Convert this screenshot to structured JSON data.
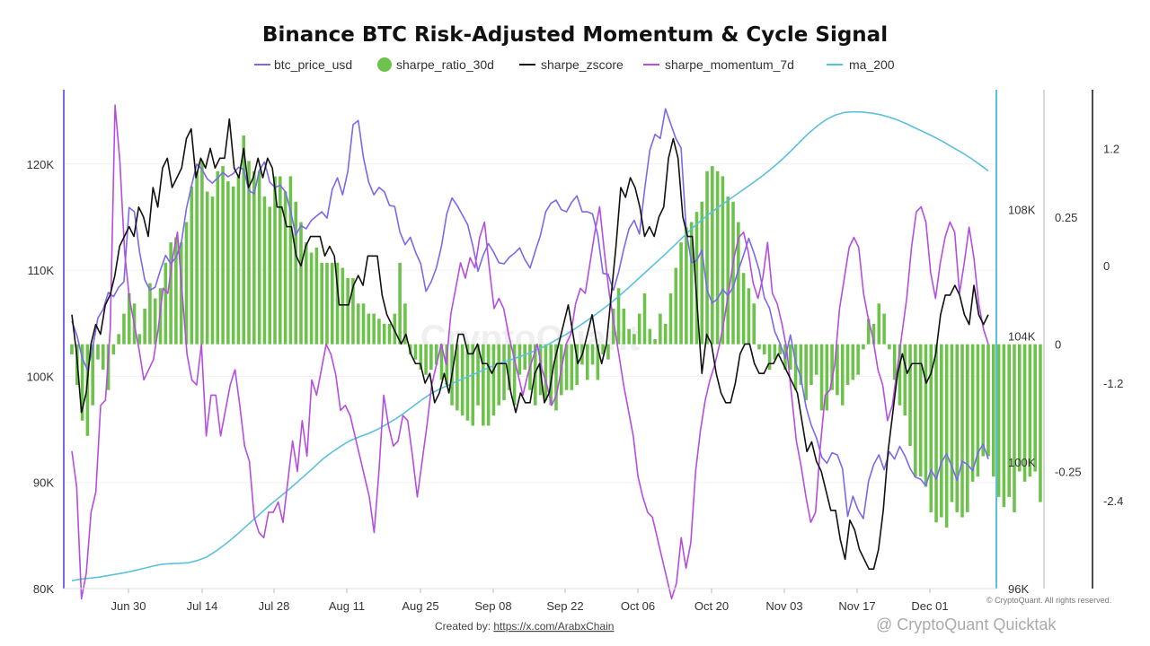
{
  "chart_data": {
    "type": "line",
    "title": "Binance BTC Risk-Adjusted Momentum & Cycle Signal",
    "legend": [
      {
        "key": "btc_price_usd",
        "label": "btc_price_usd",
        "color": "#7b68ee",
        "kind": "line"
      },
      {
        "key": "sharpe_ratio_30d",
        "label": "sharpe_ratio_30d",
        "color": "#6cc24a",
        "kind": "dot"
      },
      {
        "key": "sharpe_zscore",
        "label": "sharpe_zscore",
        "color": "#111111",
        "kind": "line"
      },
      {
        "key": "sharpe_momentum_7d",
        "label": "sharpe_momentum_7d",
        "color": "#b44ee0",
        "kind": "line"
      },
      {
        "key": "ma_200",
        "label": "ma_200",
        "color": "#5bc0de",
        "kind": "line"
      }
    ],
    "x_ticks": [
      "Jun 30",
      "Jul 14",
      "Jul 28",
      "Aug 11",
      "Aug 25",
      "Sep 08",
      "Sep 22",
      "Oct 06",
      "Oct 20",
      "Nov 03",
      "Nov 17",
      "Dec 01"
    ],
    "axes": {
      "price": {
        "ticks": [
          "80K",
          "90K",
          "100K",
          "110K",
          "120K"
        ],
        "range": [
          80000,
          127000
        ]
      },
      "ma": {
        "ticks": [
          "96K",
          "100K",
          "104K",
          "108K"
        ],
        "range": [
          96000,
          111800
        ]
      },
      "sharpe": {
        "ticks": [
          "-0.25",
          "0",
          "0.25"
        ],
        "range": [
          -0.48,
          0.5
        ]
      },
      "z": {
        "ticks": [
          "-2.4",
          "-1.2",
          "0",
          "1.2"
        ],
        "range": [
          -3.3,
          1.8
        ]
      }
    },
    "btc_price_usd": [
      105200,
      103800,
      101700,
      100600,
      102700,
      105500,
      106300,
      107900,
      107500,
      108400,
      108900,
      115900,
      115500,
      111700,
      109100,
      108100,
      108400,
      110000,
      111400,
      110600,
      111200,
      112500,
      115800,
      118000,
      120000,
      119500,
      118600,
      118200,
      118700,
      119200,
      118800,
      119100,
      119700,
      119500,
      117500,
      117200,
      119400,
      120200,
      118300,
      117800,
      118000,
      117400,
      115600,
      113300,
      114200,
      113900,
      114700,
      115100,
      115500,
      114900,
      117600,
      118700,
      117100,
      119300,
      123700,
      124100,
      120600,
      118300,
      117100,
      117800,
      117400,
      116100,
      116000,
      113600,
      112400,
      113100,
      111700,
      110600,
      108000,
      108900,
      110200,
      112300,
      115300,
      116800,
      116100,
      115200,
      114300,
      112300,
      109900,
      111400,
      112500,
      111700,
      110700,
      110600,
      111200,
      111600,
      112100,
      111000,
      110200,
      111800,
      113300,
      115500,
      116300,
      116600,
      115700,
      115500,
      116400,
      117000,
      115500,
      115500,
      115300,
      113300,
      109700,
      109600,
      108100,
      109800,
      112000,
      113900,
      114700,
      113400,
      117600,
      121300,
      122800,
      122400,
      125200,
      123800,
      122400,
      121500,
      113700,
      110700,
      110900,
      111900,
      108100,
      106900,
      107300,
      108200,
      107600,
      108400,
      110000,
      111400,
      113000,
      111600,
      110000,
      107400,
      106400,
      104200,
      103100,
      101700,
      103900,
      101300,
      99900,
      97100,
      95400,
      94200,
      92400,
      91800,
      92800,
      92600,
      91300,
      86800,
      88700,
      87400,
      86600,
      90100,
      91700,
      92600,
      91200,
      92900,
      92200,
      93400,
      92500,
      91300,
      90500,
      90300,
      89700,
      91200,
      90300,
      91900,
      92700,
      91500,
      90200,
      92000,
      91700,
      91100,
      92800,
      93600,
      92200
    ],
    "sharpe_ratio_30d": [
      -0.02,
      -0.08,
      -0.15,
      -0.18,
      -0.12,
      -0.03,
      -0.05,
      -0.09,
      -0.02,
      0.02,
      0.06,
      0.1,
      0.08,
      0.02,
      0.07,
      0.12,
      0.09,
      0.11,
      0.16,
      0.2,
      0.21,
      0.2,
      0.24,
      0.31,
      0.34,
      0.36,
      0.3,
      0.29,
      0.34,
      0.35,
      0.32,
      0.31,
      0.33,
      0.41,
      0.36,
      0.34,
      0.34,
      0.29,
      0.27,
      0.33,
      0.33,
      0.3,
      0.33,
      0.28,
      0.24,
      0.2,
      0.18,
      0.19,
      0.16,
      0.16,
      0.16,
      0.16,
      0.15,
      0.13,
      0.13,
      0.08,
      0.08,
      0.06,
      0.06,
      0.05,
      0.04,
      0.04,
      0.06,
      0.16,
      0.08,
      -0.02,
      -0.03,
      -0.05,
      -0.06,
      -0.05,
      -0.04,
      -0.07,
      -0.08,
      -0.12,
      -0.13,
      -0.14,
      -0.15,
      -0.16,
      -0.12,
      -0.16,
      -0.16,
      -0.14,
      -0.12,
      -0.11,
      -0.09,
      -0.12,
      -0.06,
      -0.05,
      -0.09,
      -0.12,
      -0.1,
      -0.11,
      -0.12,
      -0.13,
      -0.1,
      -0.09,
      -0.09,
      -0.08,
      -0.04,
      -0.07,
      -0.04,
      -0.07,
      -0.02,
      -0.03,
      0.07,
      0.11,
      0.07,
      0.03,
      0.02,
      0.06,
      0.1,
      0.03,
      0.01,
      0.06,
      0.04,
      0.1,
      0.15,
      0.2,
      0.23,
      0.24,
      0.26,
      0.28,
      0.34,
      0.35,
      0.34,
      0.33,
      0.29,
      0.28,
      0.24,
      0.14,
      0.11,
      0.08,
      -0.01,
      -0.02,
      -0.05,
      -0.03,
      -0.02,
      -0.05,
      -0.05,
      -0.09,
      -0.08,
      -0.11,
      -0.08,
      -0.06,
      -0.13,
      -0.13,
      -0.09,
      -0.1,
      -0.12,
      -0.08,
      -0.07,
      -0.06,
      -0.01,
      0.05,
      0.04,
      0.08,
      0.06,
      -0.01,
      -0.07,
      -0.12,
      -0.14,
      -0.2,
      -0.26,
      -0.26,
      -0.28,
      -0.33,
      -0.35,
      -0.34,
      -0.36,
      -0.31,
      -0.33,
      -0.34,
      -0.33,
      -0.27,
      -0.26,
      -0.22,
      -0.22,
      -0.26,
      -0.3,
      -0.32,
      -0.3,
      -0.33,
      -0.25,
      -0.27,
      -0.26,
      -0.25,
      -0.31
    ],
    "sharpe_zscore": [
      -0.5,
      -0.9,
      -1.5,
      -1.3,
      -0.8,
      -0.6,
      -0.7,
      -0.4,
      -0.3,
      -0.1,
      0.2,
      0.3,
      0.4,
      0.3,
      0.6,
      0.5,
      0.3,
      0.8,
      0.6,
      1.0,
      1.1,
      0.8,
      0.9,
      1.0,
      1.3,
      1.4,
      0.9,
      1.1,
      1.0,
      1.2,
      1.0,
      1.1,
      1.1,
      1.5,
      1.0,
      0.9,
      1.2,
      0.8,
      0.9,
      1.1,
      0.9,
      1.1,
      1.0,
      0.6,
      0.6,
      0.4,
      0.4,
      0.1,
      0.0,
      0.2,
      0.3,
      0.3,
      0.3,
      0.1,
      0.2,
      0.1,
      -0.4,
      -0.4,
      -0.4,
      -0.2,
      -0.1,
      -0.2,
      0.1,
      0.1,
      0.1,
      -0.3,
      -0.5,
      -0.6,
      -0.7,
      -0.8,
      -0.7,
      -0.9,
      -1.0,
      -1.0,
      -1.2,
      -1.1,
      -1.4,
      -1.3,
      -1.1,
      -1.3,
      -1.0,
      -0.7,
      -0.7,
      -0.9,
      -0.9,
      -0.8,
      -1.0,
      -1.0,
      -1.1,
      -1.0,
      -1.0,
      -1.0,
      -1.3,
      -1.5,
      -1.3,
      -1.4,
      -1.4,
      -1.1,
      -1.0,
      -1.4,
      -1.3,
      -1.0,
      -0.8,
      -0.6,
      -0.4,
      -0.7,
      -1.0,
      -0.9,
      -0.7,
      -0.5,
      -0.8,
      -1.0,
      -0.8,
      -0.3,
      0.2,
      0.8,
      0.7,
      0.9,
      0.8,
      0.6,
      0.3,
      0.4,
      0.3,
      0.5,
      0.6,
      1.1,
      1.3,
      1.1,
      0.5,
      0.3,
      0.3,
      -0.4,
      -1.1,
      -0.7,
      -0.8,
      -1.1,
      -1.3,
      -1.4,
      -1.4,
      -1.2,
      -0.9,
      -0.8,
      -0.8,
      -1.0,
      -1.1,
      -1.1,
      -1.0,
      -1.0,
      -0.9,
      -1.0,
      -1.1,
      -1.2,
      -1.3,
      -1.6,
      -1.9,
      -1.8,
      -2.0,
      -2.1,
      -2.3,
      -2.5,
      -2.5,
      -2.8,
      -3.0,
      -2.6,
      -2.7,
      -2.9,
      -3.0,
      -3.1,
      -3.1,
      -2.9,
      -2.5,
      -1.9,
      -1.5,
      -1.1,
      -0.9,
      -1.1,
      -1.0,
      -1.0,
      -1.0,
      -1.2,
      -1.1,
      -0.9,
      -0.5,
      -0.3,
      -0.3,
      -0.2,
      -0.3,
      -0.5,
      -0.6,
      -0.2,
      -0.5,
      -0.6,
      -0.5
    ],
    "sharpe_momentum_7d": [
      -0.21,
      -0.28,
      -0.5,
      -0.45,
      -0.33,
      -0.29,
      -0.12,
      -0.11,
      0.03,
      0.47,
      0.36,
      0.18,
      0.09,
      0.04,
      -0.01,
      -0.07,
      -0.05,
      -0.03,
      0.03,
      0.11,
      0.1,
      0.17,
      0.22,
      0.1,
      -0.02,
      -0.07,
      -0.08,
      0.0,
      -0.18,
      -0.1,
      -0.1,
      -0.18,
      -0.13,
      -0.08,
      -0.05,
      -0.12,
      -0.2,
      -0.23,
      -0.34,
      -0.37,
      -0.38,
      -0.33,
      -0.33,
      -0.31,
      -0.35,
      -0.27,
      -0.19,
      -0.25,
      -0.15,
      -0.22,
      -0.07,
      -0.1,
      -0.05,
      0.0,
      -0.02,
      -0.06,
      -0.13,
      -0.12,
      -0.14,
      -0.18,
      -0.22,
      -0.26,
      -0.3,
      -0.37,
      -0.25,
      -0.1,
      -0.16,
      -0.2,
      -0.19,
      -0.14,
      -0.15,
      -0.22,
      -0.3,
      -0.23,
      -0.16,
      -0.08,
      -0.04,
      0.0,
      -0.04,
      0.06,
      0.11,
      0.16,
      0.13,
      0.17,
      0.15,
      0.21,
      0.24,
      0.15,
      0.07,
      0.09,
      0.07,
      0.02,
      -0.02,
      -0.06,
      -0.1,
      -0.06,
      -0.03,
      0.0,
      -0.05,
      -0.08,
      -0.12,
      -0.1,
      -0.05,
      0.0,
      0.02,
      0.08,
      0.11,
      0.1,
      0.16,
      0.22,
      0.27,
      0.18,
      0.1,
      0.04,
      -0.02,
      -0.08,
      -0.13,
      -0.18,
      -0.26,
      -0.3,
      -0.33,
      -0.34,
      -0.38,
      -0.42,
      -0.46,
      -0.5,
      -0.47,
      -0.38,
      -0.44,
      -0.39,
      -0.25,
      -0.17,
      -0.11,
      -0.07,
      -0.04,
      0.0,
      0.05,
      0.11,
      0.17,
      0.21,
      0.22,
      0.18,
      0.12,
      0.09,
      0.13,
      0.2,
      0.1,
      0.08,
      0.04,
      -0.01,
      -0.1,
      -0.19,
      -0.24,
      -0.3,
      -0.35,
      -0.33,
      -0.2,
      -0.1,
      -0.09,
      -0.04,
      0.07,
      0.13,
      0.19,
      0.21,
      0.19,
      0.1,
      0.05,
      0.01,
      -0.05,
      -0.08,
      -0.15,
      -0.12,
      -0.05,
      0.02,
      0.09,
      0.19,
      0.26,
      0.27,
      0.24,
      0.14,
      0.09,
      0.16,
      0.21,
      0.24,
      0.22,
      0.1,
      0.16,
      0.23,
      0.17,
      0.08,
      0.03,
      0.0
    ],
    "ma_200": [
      96250,
      96300,
      96330,
      96360,
      96410,
      96460,
      96510,
      96570,
      96640,
      96710,
      96770,
      96790,
      96800,
      96820,
      96890,
      97000,
      97180,
      97390,
      97620,
      97870,
      98130,
      98380,
      98640,
      98870,
      99100,
      99350,
      99600,
      99860,
      100120,
      100330,
      100520,
      100690,
      100810,
      100910,
      101040,
      101200,
      101370,
      101560,
      101780,
      101990,
      102180,
      102330,
      102450,
      102580,
      102700,
      102820,
      102950,
      103070,
      103170,
      103260,
      103360,
      103470,
      103590,
      103730,
      103890,
      104050,
      104230,
      104420,
      104620,
      104830,
      105050,
      105290,
      105540,
      105800,
      106060,
      106320,
      106580,
      106850,
      107130,
      107400,
      107650,
      107880,
      108090,
      108290,
      108490,
      108690,
      108890,
      109100,
      109330,
      109580,
      109850,
      110140,
      110420,
      110660,
      110860,
      111000,
      111080,
      111100,
      111090,
      111060,
      111010,
      110930,
      110830,
      110710,
      110570,
      110440,
      110300,
      110150,
      109980,
      109820,
      109640,
      109440,
      109230
    ]
  }
}
